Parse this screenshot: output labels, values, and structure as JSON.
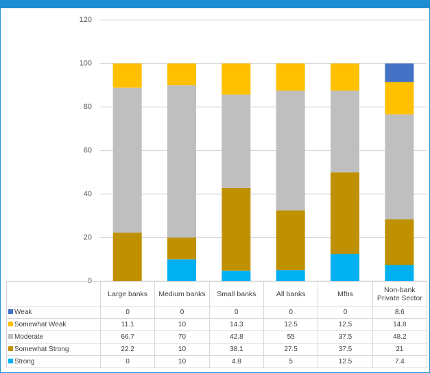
{
  "chart_data": {
    "type": "stacked_bar",
    "categories": [
      "Large banks",
      "Medium banks",
      "Small banks",
      "All banks",
      "Mfbs",
      "Non-bank Private Sector"
    ],
    "series": [
      {
        "name": "Weak",
        "color": "#4472c4",
        "values": [
          0,
          0,
          0,
          0,
          0,
          8.6
        ]
      },
      {
        "name": "Somewhat Weak",
        "color": "#ffc000",
        "values": [
          11.1,
          10,
          14.3,
          12.5,
          12.5,
          14.8
        ]
      },
      {
        "name": "Moderate",
        "color": "#bfbfbf",
        "values": [
          66.7,
          70,
          42.8,
          55,
          37.5,
          48.2
        ]
      },
      {
        "name": "Somewhat Strong",
        "color": "#bf9000",
        "values": [
          22.2,
          10,
          38.1,
          27.5,
          37.5,
          21
        ]
      },
      {
        "name": "Strong",
        "color": "#00b0f0",
        "values": [
          0,
          10,
          4.8,
          5,
          12.5,
          7.4
        ]
      }
    ],
    "ylim": [
      0,
      120
    ],
    "yticks": [
      0,
      20,
      40,
      60,
      80,
      100,
      120
    ],
    "grid": true
  }
}
